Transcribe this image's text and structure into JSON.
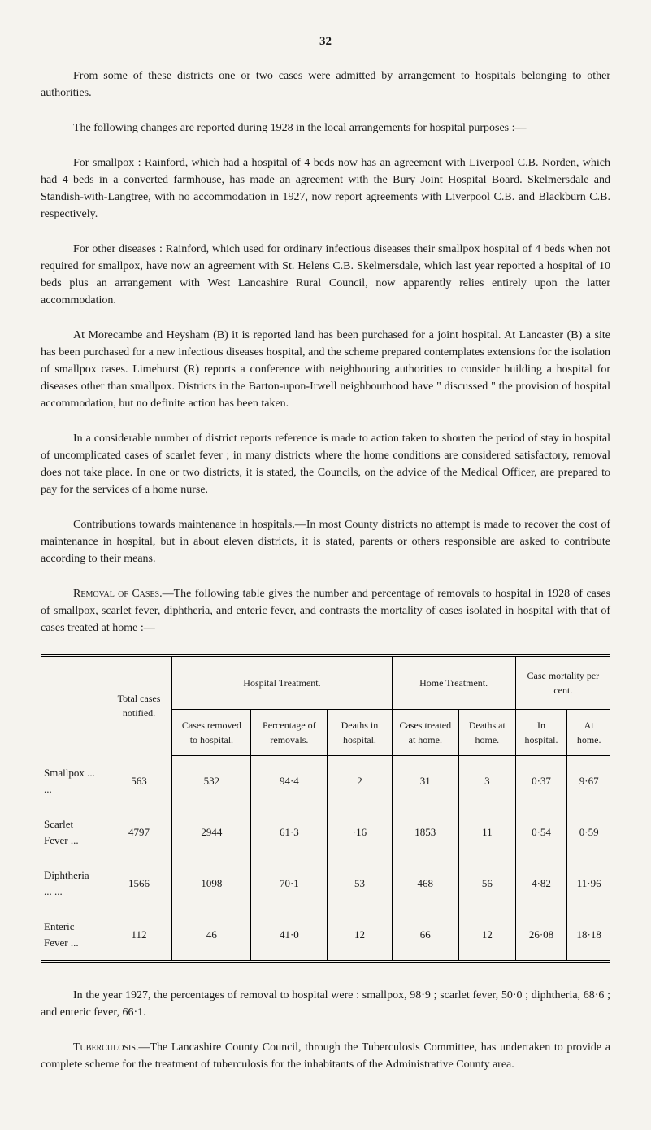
{
  "page_number": "32",
  "paragraphs": {
    "p1": "From some of these districts one or two cases were admitted by arrangement to hospitals belonging to other authorities.",
    "p2": "The following changes are reported during 1928 in the local arrangements for hospital purposes :—",
    "p3": "For smallpox : Rainford, which had a hospital of 4 beds now has an agreement with Liverpool C.B. Norden, which had 4 beds in a converted farmhouse, has made an agreement with the Bury Joint Hospital Board. Skelmersdale and Standish-with-Langtree, with no accommodation in 1927, now report agreements with Liverpool C.B. and Blackburn C.B. respectively.",
    "p4": "For other diseases : Rainford, which used for ordinary infectious diseases their smallpox hospital of 4 beds when not required for smallpox, have now an agreement with St. Helens C.B. Skelmersdale, which last year reported a hospital of 10 beds plus an arrangement with West Lancashire Rural Council, now apparently relies entirely upon the latter accommodation.",
    "p5": "At Morecambe and Heysham (B) it is reported land has been purchased for a joint hospital. At Lancaster (B) a site has been purchased for a new infectious diseases hospital, and the scheme prepared contemplates extensions for the isolation of smallpox cases. Limehurst (R) reports a conference with neighbouring authorities to consider building a hospital for diseases other than smallpox. Districts in the Barton-upon-Irwell neighbourhood have \" discussed \" the provision of hospital accommodation, but no definite action has been taken.",
    "p6": "In a considerable number of district reports reference is made to action taken to shorten the period of stay in hospital of uncomplicated cases of scarlet fever ; in many districts where the home conditions are considered satisfactory, removal does not take place. In one or two districts, it is stated, the Councils, on the advice of the Medical Officer, are prepared to pay for the services of a home nurse.",
    "p7": "Contributions towards maintenance in hospitals.—In most County districts no attempt is made to recover the cost of maintenance in hospital, but in about eleven districts, it is stated, parents or others responsible are asked to contribute according to their means.",
    "p8_title": "Removal of Cases.",
    "p8_text": "—The following table gives the number and percentage of removals to hospital in 1928 of cases of smallpox, scarlet fever, diphtheria, and enteric fever, and contrasts the mortality of cases isolated in hospital with that of cases treated at home :—",
    "p9": "In the year 1927, the percentages of removal to hospital were : smallpox, 98·9 ; scarlet fever, 50·0 ; diphtheria, 68·6 ; and enteric fever, 66·1.",
    "p10_title": "Tuberculosis.",
    "p10_text": "—The Lancashire County Council, through the Tuberculosis Committee, has undertaken to provide a complete scheme for the treatment of tuberculosis for the inhabitants of the Administrative County area."
  },
  "table": {
    "group_headers": {
      "total": "Total cases notified.",
      "hospital_treatment": "Hospital Treatment.",
      "home_treatment": "Home Treatment.",
      "case_mortality": "Case mortality per cent."
    },
    "sub_headers": {
      "cases_removed": "Cases removed to hospital.",
      "percentage": "Per­centage of removals.",
      "deaths_hospital": "Deaths in hospital.",
      "cases_home": "Cases treated at home.",
      "deaths_home": "Deaths at home.",
      "in_hospital": "In hospital.",
      "at_home": "At home."
    },
    "rows": [
      {
        "label": "Smallpox    ...    ...",
        "total": "563",
        "removed": "532",
        "pct": "94·4",
        "deaths_h": "2",
        "cases_home": "31",
        "deaths_home": "3",
        "mort_h": "0·37",
        "mort_home": "9·67"
      },
      {
        "label": "Scarlet Fever    ...",
        "total": "4797",
        "removed": "2944",
        "pct": "61·3",
        "deaths_h": "·16",
        "cases_home": "1853",
        "deaths_home": "11",
        "mort_h": "0·54",
        "mort_home": "0·59"
      },
      {
        "label": "Diphtheria ...    ...",
        "total": "1566",
        "removed": "1098",
        "pct": "70·1",
        "deaths_h": "53",
        "cases_home": "468",
        "deaths_home": "56",
        "mort_h": "4·82",
        "mort_home": "11·96"
      },
      {
        "label": "Enteric Fever    ...",
        "total": "112",
        "removed": "46",
        "pct": "41·0",
        "deaths_h": "12",
        "cases_home": "66",
        "deaths_home": "12",
        "mort_h": "26·08",
        "mort_home": "18·18"
      }
    ]
  }
}
